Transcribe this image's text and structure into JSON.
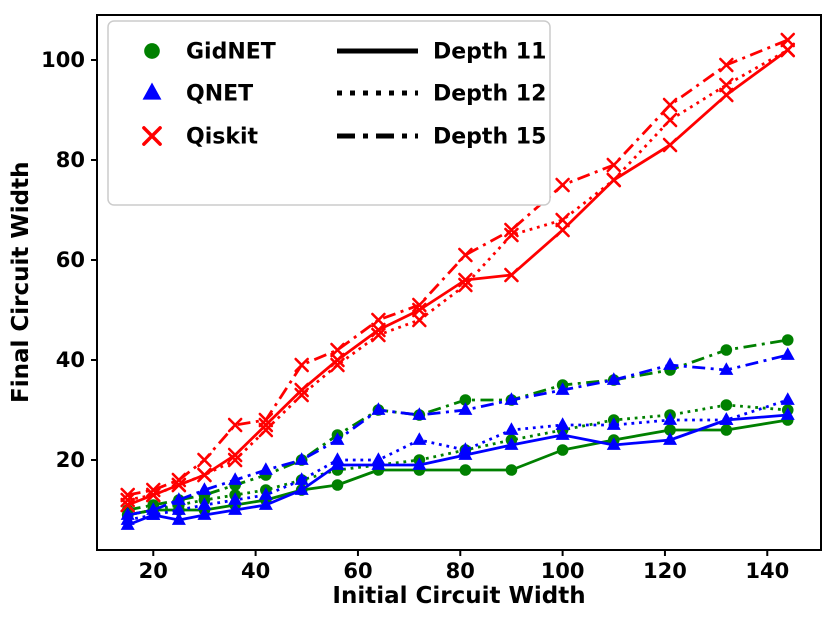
{
  "chart_data": {
    "type": "line",
    "title": "",
    "xlabel": "Initial Circuit Width",
    "ylabel": "Final Circuit Width",
    "xlim": [
      9,
      150.5
    ],
    "ylim": [
      2,
      109
    ],
    "xticks": [
      20,
      40,
      60,
      80,
      100,
      120,
      140
    ],
    "yticks": [
      20,
      40,
      60,
      80,
      100
    ],
    "grid": false,
    "legend_position": "upper left",
    "colors": {
      "GidNET": "#008000",
      "QNET": "#0000ff",
      "Qiskit": "#ff0000",
      "axis": "#000000",
      "legend_border": "#cccccc"
    },
    "x": [
      15,
      20,
      25,
      30,
      36,
      42,
      49,
      56,
      64,
      72,
      81,
      90,
      100,
      110,
      121,
      132,
      144
    ],
    "series": [
      {
        "name": "GidNET Depth 11",
        "method": "GidNET",
        "depth": 11,
        "color": "#008000",
        "marker": "circle",
        "line_style": "solid",
        "values": [
          9,
          10,
          10,
          10,
          11,
          12,
          14,
          15,
          18,
          18,
          18,
          18,
          22,
          24,
          26,
          26,
          28
        ]
      },
      {
        "name": "GidNET Depth 12",
        "method": "GidNET",
        "depth": 12,
        "color": "#008000",
        "marker": "circle",
        "line_style": "dotted",
        "values": [
          9,
          10,
          11,
          12,
          13,
          14,
          16,
          18,
          19,
          20,
          22,
          24,
          26,
          28,
          29,
          31,
          30
        ]
      },
      {
        "name": "GidNET Depth 15",
        "method": "GidNET",
        "depth": 15,
        "color": "#008000",
        "marker": "circle",
        "line_style": "dashdot",
        "values": [
          10,
          11,
          12,
          13,
          15,
          17,
          20,
          25,
          30,
          29,
          32,
          32,
          35,
          36,
          38,
          42,
          44
        ]
      },
      {
        "name": "QNET Depth 11",
        "method": "QNET",
        "depth": 11,
        "color": "#0000ff",
        "marker": "triangle",
        "line_style": "solid",
        "values": [
          7,
          9,
          8,
          9,
          10,
          11,
          14,
          19,
          19,
          19,
          21,
          23,
          25,
          23,
          24,
          28,
          29
        ]
      },
      {
        "name": "QNET Depth 12",
        "method": "QNET",
        "depth": 12,
        "color": "#0000ff",
        "marker": "triangle",
        "line_style": "dotted",
        "values": [
          8,
          9,
          10,
          11,
          12,
          13,
          16,
          20,
          20,
          24,
          22,
          26,
          27,
          27,
          28,
          28,
          32
        ]
      },
      {
        "name": "QNET Depth 15",
        "method": "QNET",
        "depth": 15,
        "color": "#0000ff",
        "marker": "triangle",
        "line_style": "dashdot",
        "values": [
          9,
          10,
          12,
          14,
          16,
          18,
          20,
          24,
          30,
          29,
          30,
          32,
          34,
          36,
          39,
          38,
          41
        ]
      },
      {
        "name": "Qiskit Depth 11",
        "method": "Qiskit",
        "depth": 11,
        "color": "#ff0000",
        "marker": "x",
        "line_style": "solid",
        "values": [
          11,
          13,
          15,
          17,
          21,
          27,
          34,
          40,
          46,
          50,
          56,
          57,
          66,
          76,
          83,
          93,
          102
        ]
      },
      {
        "name": "Qiskit Depth 12",
        "method": "Qiskit",
        "depth": 12,
        "color": "#ff0000",
        "marker": "x",
        "line_style": "dotted",
        "values": [
          12,
          13,
          15,
          17,
          20,
          26,
          33,
          39,
          45,
          48,
          55,
          65,
          68,
          76,
          88,
          95,
          102
        ]
      },
      {
        "name": "Qiskit Depth 15",
        "method": "Qiskit",
        "depth": 15,
        "color": "#ff0000",
        "marker": "x",
        "line_style": "dashdot",
        "values": [
          13,
          14,
          16,
          20,
          27,
          28,
          39,
          42,
          48,
          51,
          61,
          66,
          75,
          79,
          91,
          99,
          104
        ]
      }
    ],
    "legend": {
      "methods": [
        {
          "label": "GidNET",
          "marker": "circle",
          "color": "#008000"
        },
        {
          "label": "QNET",
          "marker": "triangle",
          "color": "#0000ff"
        },
        {
          "label": "Qiskit",
          "marker": "x",
          "color": "#ff0000"
        }
      ],
      "depths": [
        {
          "label": "Depth 11",
          "line_style": "solid"
        },
        {
          "label": "Depth 12",
          "line_style": "dotted"
        },
        {
          "label": "Depth 15",
          "line_style": "dashdot"
        }
      ]
    }
  }
}
